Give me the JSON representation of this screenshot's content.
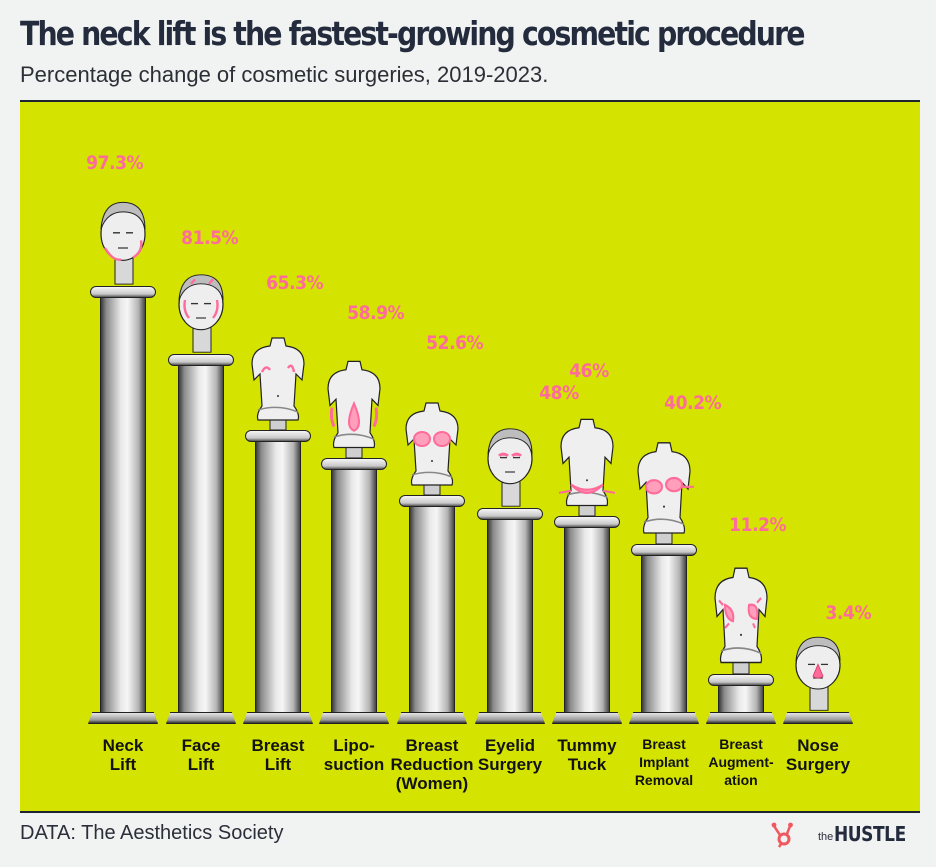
{
  "header": {
    "title": "The neck lift is the fastest-growing cosmetic procedure",
    "subtitle": "Percentage change of cosmetic surgeries, 2019-2023."
  },
  "footer": {
    "source": "DATA: The Aesthetics Society",
    "logo_prefix": "the",
    "logo_name": "HUSTLE"
  },
  "colors": {
    "background": "#f1f3f2",
    "panel": "#d4e400",
    "accent_pink": "#ff6b9a",
    "title": "#232b3d"
  },
  "columns": [
    {
      "label": "Neck\nLift",
      "value_label": "97.3%",
      "statue": "head"
    },
    {
      "label": "Face\nLift",
      "value_label": "81.5%",
      "statue": "head"
    },
    {
      "label": "Breast\nLift",
      "value_label": "65.3%",
      "statue": "torso"
    },
    {
      "label": "Lipo-\nsuction",
      "value_label": "58.9%",
      "statue": "torso"
    },
    {
      "label": "Breast\nReduction\n(Women)",
      "value_label": "52.6%",
      "statue": "torso"
    },
    {
      "label": "Eyelid\nSurgery",
      "value_label": "48%",
      "statue": "head"
    },
    {
      "label": "Tummy\nTuck",
      "value_label": "46%",
      "statue": "torso"
    },
    {
      "label": "Breast\nImplant\nRemoval",
      "value_label": "40.2%",
      "statue": "torso"
    },
    {
      "label": "Breast\nAugment-\nation",
      "value_label": "11.2%",
      "statue": "torso"
    },
    {
      "label": "Nose\nSurgery",
      "value_label": "3.4%",
      "statue": "head"
    }
  ],
  "chart_data": {
    "type": "bar",
    "title": "The neck lift is the fastest-growing cosmetic procedure",
    "subtitle": "Percentage change of cosmetic surgeries, 2019-2023.",
    "categories": [
      "Neck Lift",
      "Face Lift",
      "Breast Lift",
      "Liposuction",
      "Breast Reduction (Women)",
      "Eyelid Surgery",
      "Tummy Tuck",
      "Breast Implant Removal",
      "Breast Augmentation",
      "Nose Surgery"
    ],
    "values": [
      97.3,
      81.5,
      65.3,
      58.9,
      52.6,
      48,
      46,
      40.2,
      11.2,
      3.4
    ],
    "unit": "%",
    "xlabel": "",
    "ylabel": "",
    "grid": false,
    "legend": null,
    "source": "DATA: The Aesthetics Society",
    "style": "pictorial columns (classical pillars topped with statues)"
  }
}
